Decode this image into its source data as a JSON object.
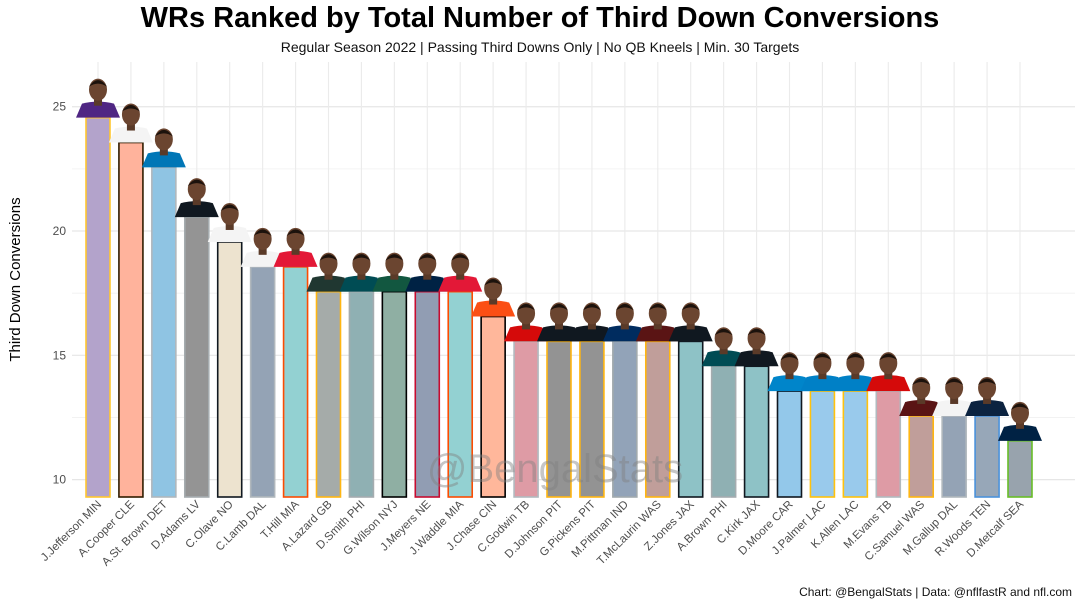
{
  "chart_data": {
    "type": "bar",
    "title": "WRs Ranked by Total Number of Third Down Conversions",
    "subtitle": "Regular Season 2022 | Passing Third Downs Only | No QB Kneels | Min. 30 Targets",
    "caption": "Chart: @BengalStats | Data: @nflfastR and nfl.com",
    "watermark": "@BengalStats",
    "xlabel": "",
    "ylabel": "Third Down Conversions",
    "yticks": [
      10,
      15,
      20,
      25
    ],
    "ylim": [
      9.3,
      26.8
    ],
    "grid": true,
    "categories": [
      "J.Jefferson MIN",
      "A.Cooper CLE",
      "A.St. Brown DET",
      "D.Adams LV",
      "C.Olave NO",
      "C.Lamb DAL",
      "T.Hill MIA",
      "A.Lazard GB",
      "D.Smith PHI",
      "G.Wilson NYJ",
      "J.Meyers NE",
      "J.Waddle MIA",
      "J.Chase CIN",
      "C.Godwin TB",
      "D.Johnson PIT",
      "G.Pickens PIT",
      "M.Pittman IND",
      "T.McLaurin WAS",
      "Z.Jones JAX",
      "A.Brown PHI",
      "C.Kirk JAX",
      "D.Moore CAR",
      "J.Palmer LAC",
      "K.Allen LAC",
      "M.Evans TB",
      "C.Samuel WAS",
      "M.Gallup DAL",
      "R.Woods TEN",
      "D.Metcalf SEA"
    ],
    "values": [
      25,
      24,
      23,
      21,
      20,
      19,
      19,
      18,
      18,
      18,
      18,
      18,
      17,
      16,
      16,
      16,
      16,
      16,
      16,
      15,
      15,
      14,
      14,
      14,
      14,
      13,
      13,
      13,
      12
    ],
    "team_colors": {
      "MIN": {
        "fill": "#b3a3cb",
        "border": "#ffc62f",
        "jersey": "#4f2683"
      },
      "CLE": {
        "fill": "#ffb39c",
        "border": "#311d00",
        "jersey": "#f4f4f4"
      },
      "DET": {
        "fill": "#8fc4e3",
        "border": "#b0b7bc",
        "jersey": "#0076b6"
      },
      "LV": {
        "fill": "#949494",
        "border": "#a5acaf",
        "jersey": "#101820"
      },
      "NO": {
        "fill": "#ede3cf",
        "border": "#101820",
        "jersey": "#f4f4f4"
      },
      "DAL": {
        "fill": "#94a3b5",
        "border": "#b0b7bc",
        "jersey": "#f4f4f4"
      },
      "MIA": {
        "fill": "#93d1d2",
        "border": "#fc4c02",
        "jersey": "#e31837"
      },
      "GB": {
        "fill": "#a5aba9",
        "border": "#ffb612",
        "jersey": "#203731"
      },
      "PHI": {
        "fill": "#8fb0b3",
        "border": "#a5acaf",
        "jersey": "#004c54"
      },
      "NYJ": {
        "fill": "#8fafa3",
        "border": "#000000",
        "jersey": "#125740"
      },
      "NE": {
        "fill": "#919db3",
        "border": "#c60c30",
        "jersey": "#002244"
      },
      "CIN": {
        "fill": "#ffb79b",
        "border": "#000000",
        "jersey": "#fb4f14"
      },
      "TB": {
        "fill": "#de9ba5",
        "border": "#b1babf",
        "jersey": "#d50a0a"
      },
      "PIT": {
        "fill": "#939393",
        "border": "#ffb612",
        "jersey": "#101820"
      },
      "IND": {
        "fill": "#92a3b8",
        "border": "#a2aaad",
        "jersey": "#002c5f"
      },
      "WAS": {
        "fill": "#c09e9a",
        "border": "#ffb612",
        "jersey": "#5a1414"
      },
      "JAX": {
        "fill": "#8ec2c6",
        "border": "#101820",
        "jersey": "#101820"
      },
      "CAR": {
        "fill": "#93c8ea",
        "border": "#101820",
        "jersey": "#0085ca"
      },
      "LAC": {
        "fill": "#99caec",
        "border": "#ffc20e",
        "jersey": "#0080c6"
      },
      "TEN": {
        "fill": "#97a7b8",
        "border": "#4b92db",
        "jersey": "#0c2340"
      },
      "SEA": {
        "fill": "#98a3ad",
        "border": "#69be28",
        "jersey": "#002244"
      }
    }
  }
}
